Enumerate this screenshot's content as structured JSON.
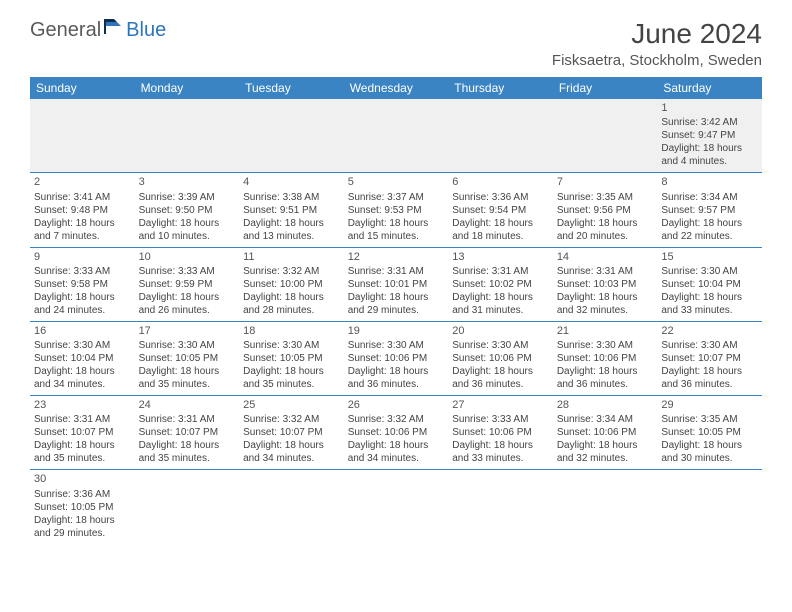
{
  "brand": {
    "part1": "General",
    "part2": "Blue"
  },
  "title": "June 2024",
  "location": "Fisksaetra, Stockholm, Sweden",
  "colors": {
    "header_bg": "#3b84c4",
    "header_text": "#ffffff",
    "sep_line": "#3b84c4",
    "first_row_bg": "#f0f0f0",
    "body_text": "#444444",
    "brand_gray": "#5a5a5a",
    "brand_blue": "#2d76bc"
  },
  "day_headers": [
    "Sunday",
    "Monday",
    "Tuesday",
    "Wednesday",
    "Thursday",
    "Friday",
    "Saturday"
  ],
  "weeks": [
    [
      null,
      null,
      null,
      null,
      null,
      null,
      {
        "n": "1",
        "sr": "Sunrise: 3:42 AM",
        "ss": "Sunset: 9:47 PM",
        "d1": "Daylight: 18 hours",
        "d2": "and 4 minutes."
      }
    ],
    [
      {
        "n": "2",
        "sr": "Sunrise: 3:41 AM",
        "ss": "Sunset: 9:48 PM",
        "d1": "Daylight: 18 hours",
        "d2": "and 7 minutes."
      },
      {
        "n": "3",
        "sr": "Sunrise: 3:39 AM",
        "ss": "Sunset: 9:50 PM",
        "d1": "Daylight: 18 hours",
        "d2": "and 10 minutes."
      },
      {
        "n": "4",
        "sr": "Sunrise: 3:38 AM",
        "ss": "Sunset: 9:51 PM",
        "d1": "Daylight: 18 hours",
        "d2": "and 13 minutes."
      },
      {
        "n": "5",
        "sr": "Sunrise: 3:37 AM",
        "ss": "Sunset: 9:53 PM",
        "d1": "Daylight: 18 hours",
        "d2": "and 15 minutes."
      },
      {
        "n": "6",
        "sr": "Sunrise: 3:36 AM",
        "ss": "Sunset: 9:54 PM",
        "d1": "Daylight: 18 hours",
        "d2": "and 18 minutes."
      },
      {
        "n": "7",
        "sr": "Sunrise: 3:35 AM",
        "ss": "Sunset: 9:56 PM",
        "d1": "Daylight: 18 hours",
        "d2": "and 20 minutes."
      },
      {
        "n": "8",
        "sr": "Sunrise: 3:34 AM",
        "ss": "Sunset: 9:57 PM",
        "d1": "Daylight: 18 hours",
        "d2": "and 22 minutes."
      }
    ],
    [
      {
        "n": "9",
        "sr": "Sunrise: 3:33 AM",
        "ss": "Sunset: 9:58 PM",
        "d1": "Daylight: 18 hours",
        "d2": "and 24 minutes."
      },
      {
        "n": "10",
        "sr": "Sunrise: 3:33 AM",
        "ss": "Sunset: 9:59 PM",
        "d1": "Daylight: 18 hours",
        "d2": "and 26 minutes."
      },
      {
        "n": "11",
        "sr": "Sunrise: 3:32 AM",
        "ss": "Sunset: 10:00 PM",
        "d1": "Daylight: 18 hours",
        "d2": "and 28 minutes."
      },
      {
        "n": "12",
        "sr": "Sunrise: 3:31 AM",
        "ss": "Sunset: 10:01 PM",
        "d1": "Daylight: 18 hours",
        "d2": "and 29 minutes."
      },
      {
        "n": "13",
        "sr": "Sunrise: 3:31 AM",
        "ss": "Sunset: 10:02 PM",
        "d1": "Daylight: 18 hours",
        "d2": "and 31 minutes."
      },
      {
        "n": "14",
        "sr": "Sunrise: 3:31 AM",
        "ss": "Sunset: 10:03 PM",
        "d1": "Daylight: 18 hours",
        "d2": "and 32 minutes."
      },
      {
        "n": "15",
        "sr": "Sunrise: 3:30 AM",
        "ss": "Sunset: 10:04 PM",
        "d1": "Daylight: 18 hours",
        "d2": "and 33 minutes."
      }
    ],
    [
      {
        "n": "16",
        "sr": "Sunrise: 3:30 AM",
        "ss": "Sunset: 10:04 PM",
        "d1": "Daylight: 18 hours",
        "d2": "and 34 minutes."
      },
      {
        "n": "17",
        "sr": "Sunrise: 3:30 AM",
        "ss": "Sunset: 10:05 PM",
        "d1": "Daylight: 18 hours",
        "d2": "and 35 minutes."
      },
      {
        "n": "18",
        "sr": "Sunrise: 3:30 AM",
        "ss": "Sunset: 10:05 PM",
        "d1": "Daylight: 18 hours",
        "d2": "and 35 minutes."
      },
      {
        "n": "19",
        "sr": "Sunrise: 3:30 AM",
        "ss": "Sunset: 10:06 PM",
        "d1": "Daylight: 18 hours",
        "d2": "and 36 minutes."
      },
      {
        "n": "20",
        "sr": "Sunrise: 3:30 AM",
        "ss": "Sunset: 10:06 PM",
        "d1": "Daylight: 18 hours",
        "d2": "and 36 minutes."
      },
      {
        "n": "21",
        "sr": "Sunrise: 3:30 AM",
        "ss": "Sunset: 10:06 PM",
        "d1": "Daylight: 18 hours",
        "d2": "and 36 minutes."
      },
      {
        "n": "22",
        "sr": "Sunrise: 3:30 AM",
        "ss": "Sunset: 10:07 PM",
        "d1": "Daylight: 18 hours",
        "d2": "and 36 minutes."
      }
    ],
    [
      {
        "n": "23",
        "sr": "Sunrise: 3:31 AM",
        "ss": "Sunset: 10:07 PM",
        "d1": "Daylight: 18 hours",
        "d2": "and 35 minutes."
      },
      {
        "n": "24",
        "sr": "Sunrise: 3:31 AM",
        "ss": "Sunset: 10:07 PM",
        "d1": "Daylight: 18 hours",
        "d2": "and 35 minutes."
      },
      {
        "n": "25",
        "sr": "Sunrise: 3:32 AM",
        "ss": "Sunset: 10:07 PM",
        "d1": "Daylight: 18 hours",
        "d2": "and 34 minutes."
      },
      {
        "n": "26",
        "sr": "Sunrise: 3:32 AM",
        "ss": "Sunset: 10:06 PM",
        "d1": "Daylight: 18 hours",
        "d2": "and 34 minutes."
      },
      {
        "n": "27",
        "sr": "Sunrise: 3:33 AM",
        "ss": "Sunset: 10:06 PM",
        "d1": "Daylight: 18 hours",
        "d2": "and 33 minutes."
      },
      {
        "n": "28",
        "sr": "Sunrise: 3:34 AM",
        "ss": "Sunset: 10:06 PM",
        "d1": "Daylight: 18 hours",
        "d2": "and 32 minutes."
      },
      {
        "n": "29",
        "sr": "Sunrise: 3:35 AM",
        "ss": "Sunset: 10:05 PM",
        "d1": "Daylight: 18 hours",
        "d2": "and 30 minutes."
      }
    ],
    [
      {
        "n": "30",
        "sr": "Sunrise: 3:36 AM",
        "ss": "Sunset: 10:05 PM",
        "d1": "Daylight: 18 hours",
        "d2": "and 29 minutes."
      },
      null,
      null,
      null,
      null,
      null,
      null
    ]
  ]
}
